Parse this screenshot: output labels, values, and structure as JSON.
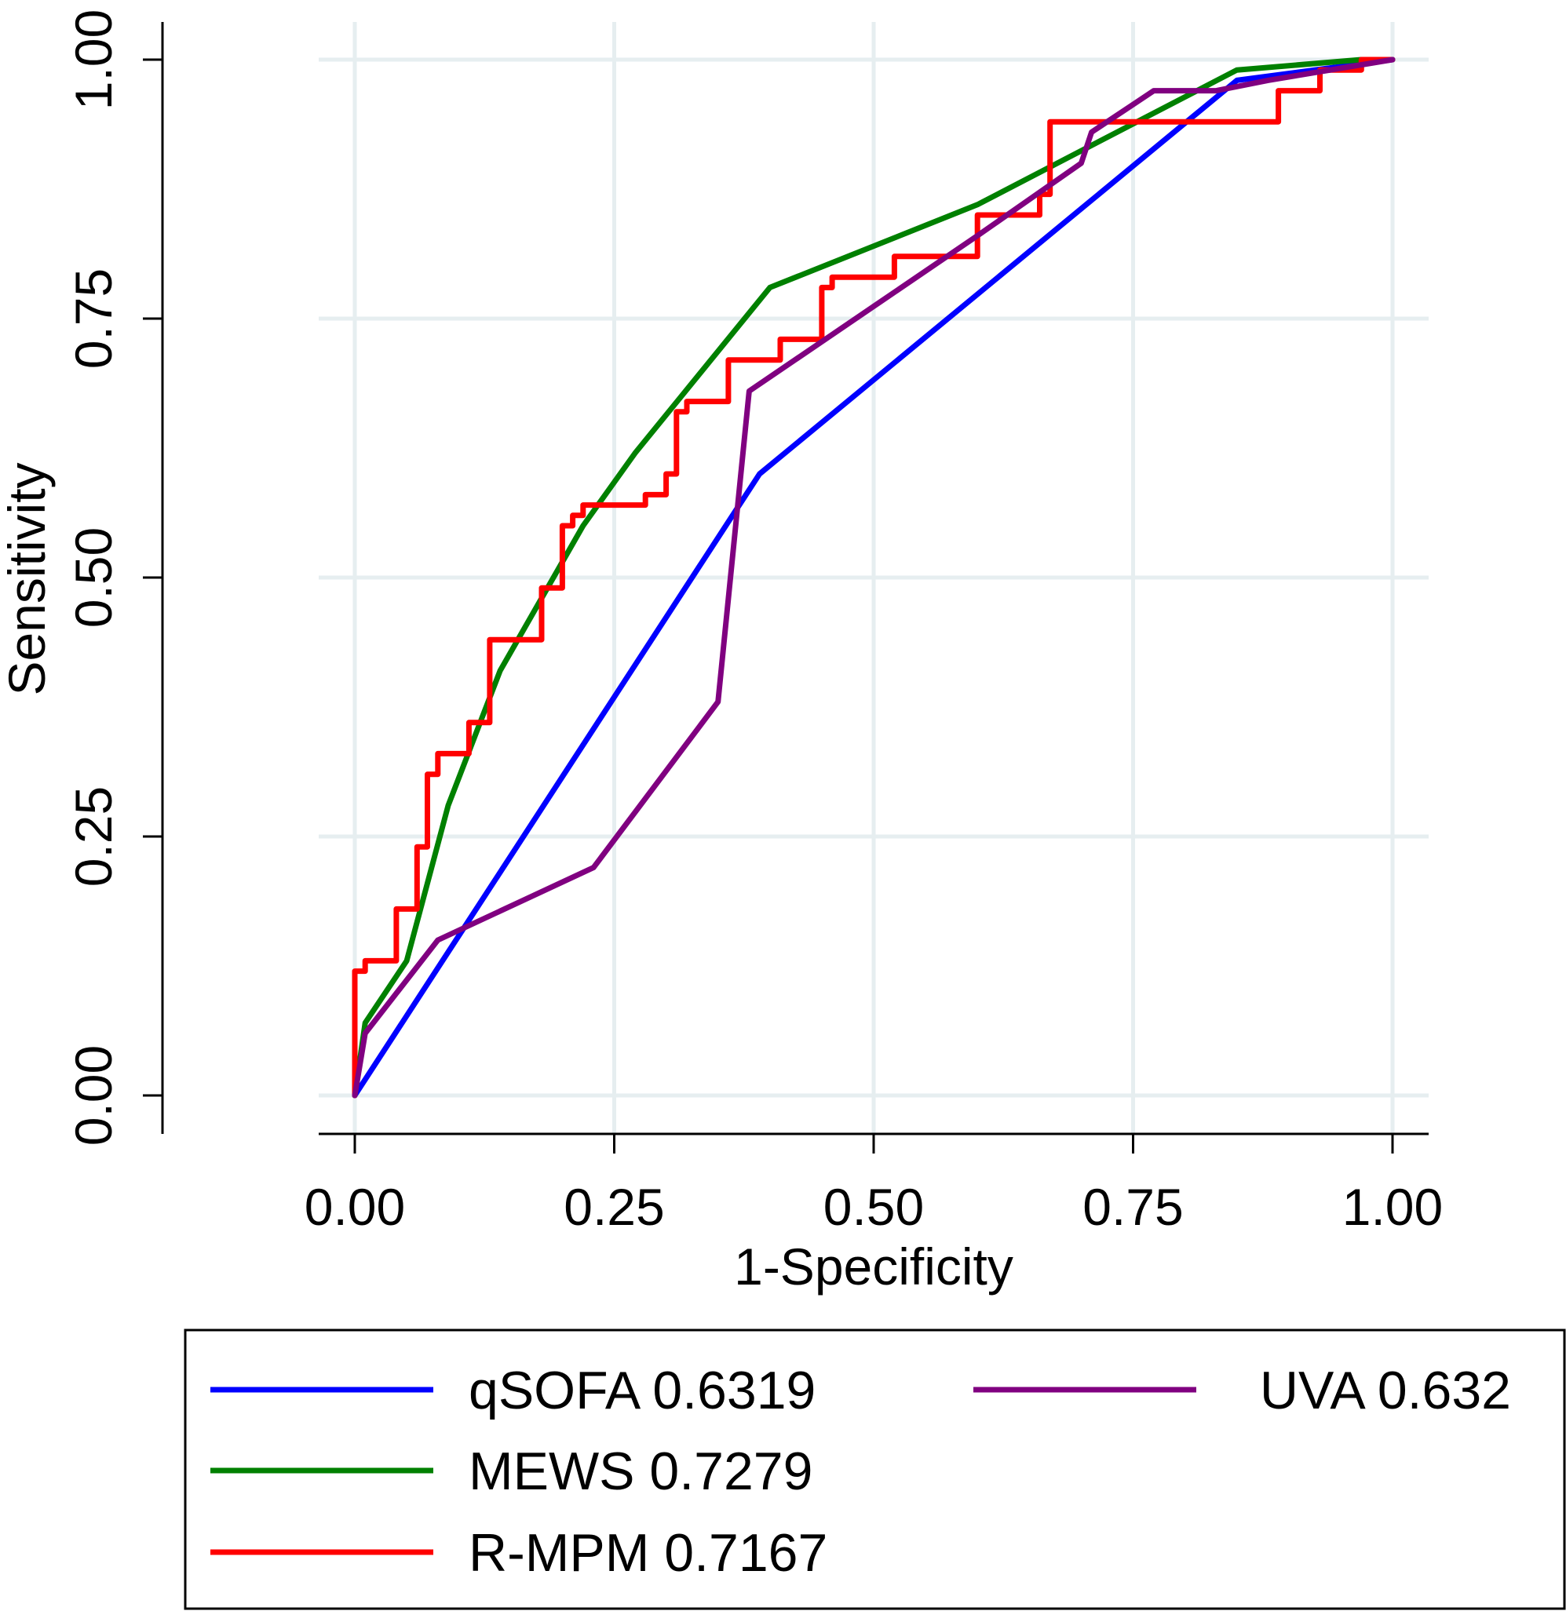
{
  "chart_data": {
    "type": "line",
    "title": "",
    "xlabel": "1-Specificity",
    "ylabel": "Sensitivity",
    "xlim": [
      0,
      1
    ],
    "ylim": [
      0,
      1
    ],
    "xticks": [
      0,
      0.25,
      0.5,
      0.75,
      1
    ],
    "yticks": [
      0,
      0.25,
      0.5,
      0.75,
      1
    ],
    "xtick_labels": [
      "0.00",
      "0.25",
      "0.50",
      "0.75",
      "1.00"
    ],
    "ytick_labels": [
      "0.00",
      "0.25",
      "0.50",
      "0.75",
      "1.00"
    ],
    "grid": true,
    "legend_position": "bottom",
    "series": [
      {
        "name": "qSOFA 0.6319",
        "color": "#0000ff",
        "points": [
          [
            0,
            0
          ],
          [
            0.39,
            0.6
          ],
          [
            0.85,
            0.98
          ],
          [
            1,
            1
          ]
        ]
      },
      {
        "name": "MEWS 0.7279",
        "color": "#008000",
        "points": [
          [
            0,
            0
          ],
          [
            0.01,
            0.07
          ],
          [
            0.05,
            0.13
          ],
          [
            0.09,
            0.28
          ],
          [
            0.14,
            0.41
          ],
          [
            0.22,
            0.55
          ],
          [
            0.27,
            0.62
          ],
          [
            0.4,
            0.78
          ],
          [
            0.6,
            0.86
          ],
          [
            0.85,
            0.99
          ],
          [
            0.97,
            1
          ],
          [
            1,
            1
          ]
        ]
      },
      {
        "name": "R-MPM 0.7167",
        "color": "#ff0000",
        "points": [
          [
            0,
            0
          ],
          [
            0,
            0.12
          ],
          [
            0.01,
            0.12
          ],
          [
            0.01,
            0.13
          ],
          [
            0.04,
            0.13
          ],
          [
            0.04,
            0.18
          ],
          [
            0.06,
            0.18
          ],
          [
            0.06,
            0.24
          ],
          [
            0.07,
            0.24
          ],
          [
            0.07,
            0.31
          ],
          [
            0.08,
            0.31
          ],
          [
            0.08,
            0.33
          ],
          [
            0.11,
            0.33
          ],
          [
            0.11,
            0.36
          ],
          [
            0.13,
            0.36
          ],
          [
            0.13,
            0.44
          ],
          [
            0.18,
            0.44
          ],
          [
            0.18,
            0.49
          ],
          [
            0.2,
            0.49
          ],
          [
            0.2,
            0.55
          ],
          [
            0.21,
            0.55
          ],
          [
            0.21,
            0.56
          ],
          [
            0.22,
            0.56
          ],
          [
            0.22,
            0.57
          ],
          [
            0.28,
            0.57
          ],
          [
            0.28,
            0.58
          ],
          [
            0.3,
            0.58
          ],
          [
            0.3,
            0.6
          ],
          [
            0.31,
            0.6
          ],
          [
            0.31,
            0.66
          ],
          [
            0.32,
            0.66
          ],
          [
            0.32,
            0.67
          ],
          [
            0.36,
            0.67
          ],
          [
            0.36,
            0.71
          ],
          [
            0.41,
            0.71
          ],
          [
            0.41,
            0.73
          ],
          [
            0.45,
            0.73
          ],
          [
            0.45,
            0.78
          ],
          [
            0.46,
            0.78
          ],
          [
            0.46,
            0.79
          ],
          [
            0.52,
            0.79
          ],
          [
            0.52,
            0.81
          ],
          [
            0.6,
            0.81
          ],
          [
            0.6,
            0.85
          ],
          [
            0.66,
            0.85
          ],
          [
            0.66,
            0.87
          ],
          [
            0.67,
            0.87
          ],
          [
            0.67,
            0.94
          ],
          [
            0.89,
            0.94
          ],
          [
            0.89,
            0.97
          ],
          [
            0.93,
            0.97
          ],
          [
            0.93,
            0.99
          ],
          [
            0.97,
            0.99
          ],
          [
            0.97,
            1
          ],
          [
            1,
            1
          ]
        ]
      },
      {
        "name": "UVA 0.632",
        "color": "#800080",
        "points": [
          [
            0,
            0
          ],
          [
            0.01,
            0.06
          ],
          [
            0.08,
            0.15
          ],
          [
            0.23,
            0.22
          ],
          [
            0.35,
            0.38
          ],
          [
            0.38,
            0.68
          ],
          [
            0.6,
            0.83
          ],
          [
            0.7,
            0.9
          ],
          [
            0.71,
            0.93
          ],
          [
            0.77,
            0.97
          ],
          [
            0.83,
            0.97
          ],
          [
            0.88,
            0.98
          ],
          [
            1,
            1
          ]
        ]
      }
    ]
  }
}
